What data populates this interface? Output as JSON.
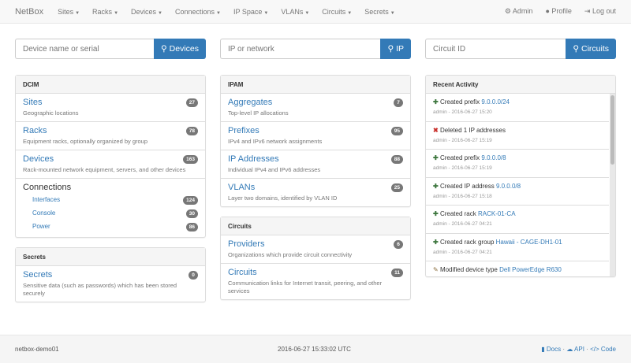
{
  "nav": {
    "brand": "NetBox",
    "menu": [
      "Sites",
      "Racks",
      "Devices",
      "Connections",
      "IP Space",
      "VLANs",
      "Circuits",
      "Secrets"
    ],
    "admin": "Admin",
    "profile": "Profile",
    "logout": "Log out"
  },
  "search": [
    {
      "placeholder": "Device name or serial",
      "button": "Devices"
    },
    {
      "placeholder": "IP or network",
      "button": "IP"
    },
    {
      "placeholder": "Circuit ID",
      "button": "Circuits"
    }
  ],
  "dcim": {
    "title": "DCIM",
    "items": [
      {
        "label": "Sites",
        "desc": "Geographic locations",
        "count": "27"
      },
      {
        "label": "Racks",
        "desc": "Equipment racks, optionally organized by group",
        "count": "78"
      },
      {
        "label": "Devices",
        "desc": "Rack-mounted network equipment, servers, and other devices",
        "count": "163"
      }
    ],
    "connections": {
      "label": "Connections",
      "items": [
        {
          "label": "Interfaces",
          "count": "124"
        },
        {
          "label": "Console",
          "count": "30"
        },
        {
          "label": "Power",
          "count": "86"
        }
      ]
    }
  },
  "secrets": {
    "title": "Secrets",
    "items": [
      {
        "label": "Secrets",
        "desc": "Sensitive data (such as passwords) which has been stored securely",
        "count": "0"
      }
    ]
  },
  "ipam": {
    "title": "IPAM",
    "items": [
      {
        "label": "Aggregates",
        "desc": "Top-level IP allocations",
        "count": "7"
      },
      {
        "label": "Prefixes",
        "desc": "IPv4 and IPv6 network assignments",
        "count": "95"
      },
      {
        "label": "IP Addresses",
        "desc": "Individual IPv4 and IPv6 addresses",
        "count": "88"
      },
      {
        "label": "VLANs",
        "desc": "Layer two domains, identified by VLAN ID",
        "count": "25"
      }
    ]
  },
  "circuits": {
    "title": "Circuits",
    "items": [
      {
        "label": "Providers",
        "desc": "Organizations which provide circuit connectivity",
        "count": "6"
      },
      {
        "label": "Circuits",
        "desc": "Communication links for Internet transit, peering, and other services",
        "count": "11"
      }
    ]
  },
  "activity": {
    "title": "Recent Activity",
    "items": [
      {
        "icon": "plus",
        "action": "Created prefix",
        "link": "9.0.0.0/24",
        "meta": "admin - 2016-06-27 15:20"
      },
      {
        "icon": "x",
        "action": "Deleted 1 IP addresses",
        "link": "",
        "meta": "admin - 2016-06-27 15:19"
      },
      {
        "icon": "plus",
        "action": "Created prefix",
        "link": "9.0.0.0/8",
        "meta": "admin - 2016-06-27 15:19"
      },
      {
        "icon": "plus",
        "action": "Created IP address",
        "link": "9.0.0.0/8",
        "meta": "admin - 2016-06-27 15:18"
      },
      {
        "icon": "plus",
        "action": "Created rack",
        "link": "RACK-01-CA",
        "meta": "admin - 2016-06-27 04:21"
      },
      {
        "icon": "plus",
        "action": "Created rack group",
        "link": "Hawaii - CAGE-DH1-01",
        "meta": "admin - 2016-06-27 04:21"
      },
      {
        "icon": "pencil",
        "action": "Modified device type",
        "link": "Dell PowerEdge R630",
        "meta": ""
      }
    ]
  },
  "footer": {
    "host": "netbox-demo01",
    "time": "2016-06-27 15:33:02 UTC",
    "docs": "Docs",
    "api": "API",
    "code": "Code"
  }
}
